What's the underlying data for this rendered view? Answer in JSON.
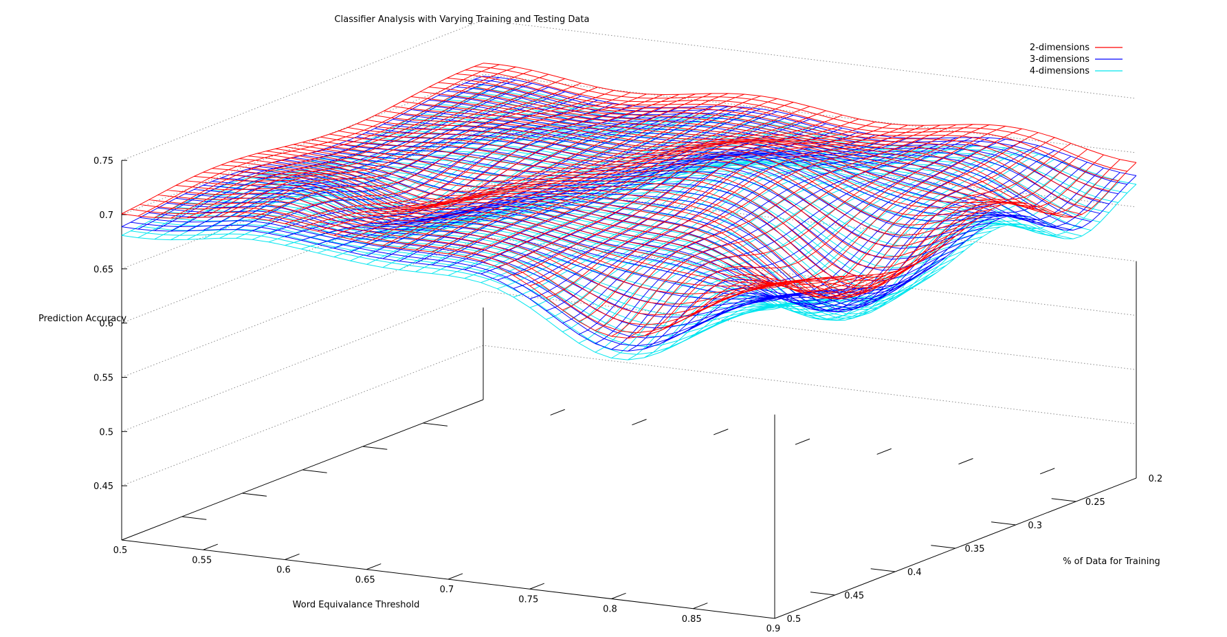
{
  "chart_data": {
    "type": "surface",
    "title": "Classifier Analysis with Varying Training and Testing Data",
    "xlabel": "Word Equivalance Threshold",
    "ylabel": "% of Data for Training",
    "zlabel": "Prediction Accuracy",
    "xlim": [
      0.5,
      0.9
    ],
    "ylim": [
      0.2,
      0.5
    ],
    "zlim": [
      0.45,
      0.75
    ],
    "x_ticks": [
      "0.5",
      "0.55",
      "0.6",
      "0.65",
      "0.7",
      "0.75",
      "0.8",
      "0.85",
      "0.9"
    ],
    "y_ticks": [
      "0.2",
      "0.25",
      "0.3",
      "0.35",
      "0.4",
      "0.45",
      "0.5"
    ],
    "z_ticks": [
      "0.75",
      "0.7",
      "0.65",
      "0.6",
      "0.55",
      "0.5",
      "0.45"
    ],
    "grid": "back-walls dotted",
    "legend_position": "top-right",
    "series": [
      {
        "name": "2-dimensions",
        "color": "#ff0000",
        "offset": 0.0
      },
      {
        "name": "3-dimensions",
        "color": "#0000ff",
        "offset": -0.012
      },
      {
        "name": "4-dimensions",
        "color": "#00e5ee",
        "offset": -0.02
      }
    ],
    "surface_model": {
      "note_base": 0.705,
      "peaks": [
        {
          "x": 0.57,
          "y": 0.43,
          "amp": 0.02,
          "sx": 0.03,
          "sy": 0.05
        },
        {
          "x": 0.74,
          "y": 0.32,
          "amp": 0.015,
          "sx": 0.06,
          "sy": 0.05
        },
        {
          "x": 0.85,
          "y": 0.38,
          "amp": -0.07,
          "sx": 0.05,
          "sy": 0.06
        },
        {
          "x": 0.8,
          "y": 0.5,
          "amp": -0.06,
          "sx": 0.06,
          "sy": 0.05
        },
        {
          "x": 0.9,
          "y": 0.25,
          "amp": -0.04,
          "sx": 0.05,
          "sy": 0.04
        },
        {
          "x": 0.6,
          "y": 0.38,
          "amp": -0.02,
          "sx": 0.05,
          "sy": 0.06
        }
      ]
    }
  }
}
